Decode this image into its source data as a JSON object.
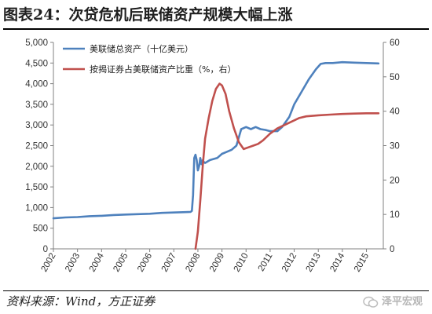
{
  "header": {
    "title": "图表24：次贷危机后联储资产规模大幅上涨"
  },
  "footer": {
    "source": "资料来源：Wind，方正证券",
    "watermark": "泽平宏观"
  },
  "chart_data": {
    "type": "line",
    "title": "图表24：次贷危机后联储资产规模大幅上涨",
    "x_ticks": [
      "2002",
      "2003",
      "2004",
      "2005",
      "2006",
      "2007",
      "2008",
      "2009",
      "2010",
      "2011",
      "2012",
      "2013",
      "2014",
      "2015"
    ],
    "x_range": [
      2002.0,
      2015.7
    ],
    "left_axis": {
      "ylim": [
        0,
        5000
      ],
      "ticks": [
        "0",
        "500",
        "1,000",
        "1,500",
        "2,000",
        "2,500",
        "3,000",
        "3,500",
        "4,000",
        "4,500",
        "5,000"
      ]
    },
    "right_axis": {
      "ylim": [
        0,
        60
      ],
      "ticks": [
        "0",
        "10",
        "20",
        "30",
        "40",
        "50",
        "60"
      ]
    },
    "legend_position": "top-left",
    "grid": false,
    "series": [
      {
        "name": "美联储总资产（十亿美元）",
        "axis": "left",
        "color": "#4e81bd",
        "points": [
          [
            2002.0,
            740
          ],
          [
            2002.5,
            760
          ],
          [
            2003.0,
            770
          ],
          [
            2003.5,
            790
          ],
          [
            2004.0,
            800
          ],
          [
            2004.5,
            820
          ],
          [
            2005.0,
            830
          ],
          [
            2005.5,
            840
          ],
          [
            2006.0,
            850
          ],
          [
            2006.5,
            870
          ],
          [
            2007.0,
            880
          ],
          [
            2007.5,
            890
          ],
          [
            2007.7,
            895
          ],
          [
            2007.75,
            920
          ],
          [
            2007.8,
            1300
          ],
          [
            2007.85,
            2200
          ],
          [
            2007.9,
            2280
          ],
          [
            2007.95,
            2150
          ],
          [
            2008.0,
            1900
          ],
          [
            2008.05,
            2000
          ],
          [
            2008.1,
            2200
          ],
          [
            2008.15,
            2050
          ],
          [
            2008.2,
            2150
          ],
          [
            2008.25,
            2100
          ],
          [
            2008.3,
            2080
          ],
          [
            2008.5,
            2150
          ],
          [
            2008.8,
            2200
          ],
          [
            2009.0,
            2300
          ],
          [
            2009.2,
            2350
          ],
          [
            2009.4,
            2400
          ],
          [
            2009.6,
            2500
          ],
          [
            2009.8,
            2900
          ],
          [
            2010.0,
            2950
          ],
          [
            2010.2,
            2900
          ],
          [
            2010.4,
            2950
          ],
          [
            2010.6,
            2900
          ],
          [
            2010.8,
            2880
          ],
          [
            2011.0,
            2850
          ],
          [
            2011.3,
            2850
          ],
          [
            2011.5,
            2950
          ],
          [
            2011.8,
            3200
          ],
          [
            2012.0,
            3500
          ],
          [
            2012.3,
            3800
          ],
          [
            2012.6,
            4100
          ],
          [
            2012.9,
            4350
          ],
          [
            2013.1,
            4480
          ],
          [
            2013.3,
            4500
          ],
          [
            2013.6,
            4500
          ],
          [
            2014.0,
            4520
          ],
          [
            2014.5,
            4510
          ],
          [
            2015.0,
            4500
          ],
          [
            2015.5,
            4490
          ]
        ]
      },
      {
        "name": "按揭证券占美联储资产比重（%，右）",
        "axis": "right",
        "color": "#c0504d",
        "points": [
          [
            2007.9,
            0
          ],
          [
            2008.0,
            5
          ],
          [
            2008.1,
            14
          ],
          [
            2008.2,
            24
          ],
          [
            2008.3,
            32
          ],
          [
            2008.45,
            38
          ],
          [
            2008.6,
            43
          ],
          [
            2008.75,
            46.5
          ],
          [
            2008.9,
            48
          ],
          [
            2009.0,
            47.5
          ],
          [
            2009.15,
            45
          ],
          [
            2009.3,
            40
          ],
          [
            2009.5,
            35
          ],
          [
            2009.7,
            31
          ],
          [
            2009.9,
            29
          ],
          [
            2010.1,
            29.5
          ],
          [
            2010.3,
            30
          ],
          [
            2010.5,
            30.5
          ],
          [
            2010.7,
            31.5
          ],
          [
            2011.0,
            33.5
          ],
          [
            2011.3,
            35
          ],
          [
            2011.6,
            36
          ],
          [
            2011.9,
            37
          ],
          [
            2012.2,
            38
          ],
          [
            2012.5,
            38.5
          ],
          [
            2013.0,
            38.8
          ],
          [
            2013.5,
            39
          ],
          [
            2014.0,
            39.2
          ],
          [
            2014.5,
            39.3
          ],
          [
            2015.0,
            39.4
          ],
          [
            2015.5,
            39.4
          ]
        ]
      }
    ]
  }
}
